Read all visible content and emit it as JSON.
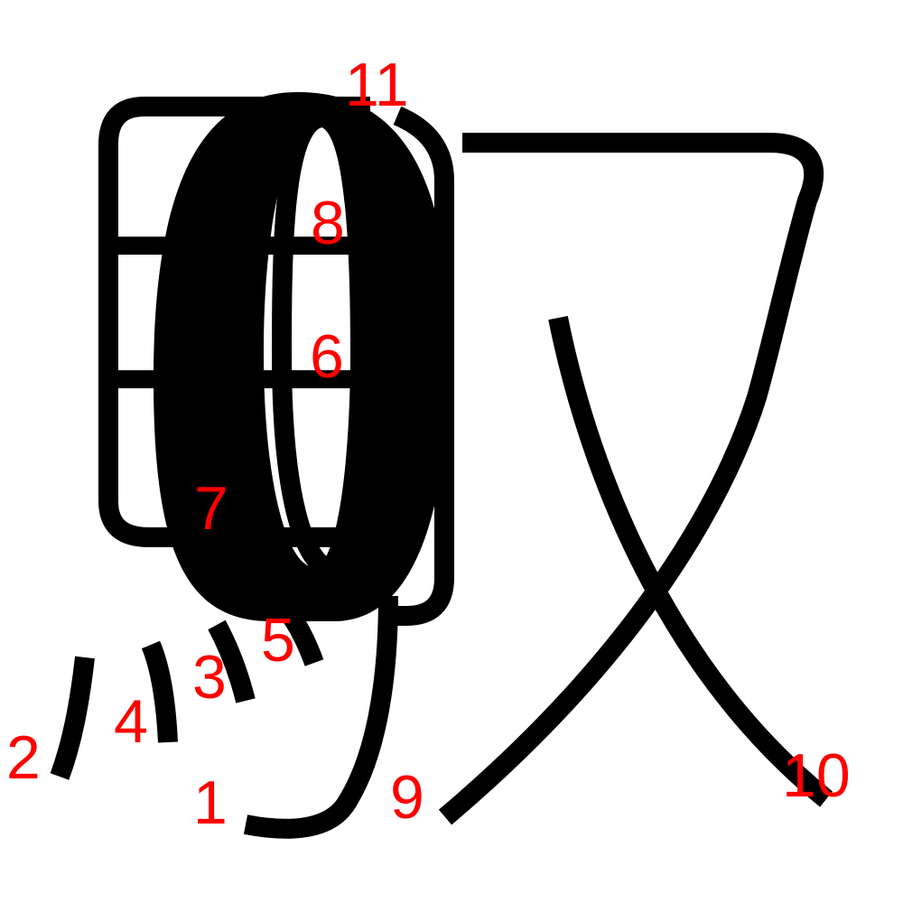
{
  "diagram": {
    "stroke_color": "#000000",
    "label_color": "#ff0000",
    "labels": {
      "l1": "1",
      "l2": "2",
      "l3": "3",
      "l4": "4",
      "l5": "5",
      "l6": "6",
      "l7": "7",
      "l8": "8",
      "l9": "9",
      "l10": "10",
      "l11": "11"
    }
  }
}
